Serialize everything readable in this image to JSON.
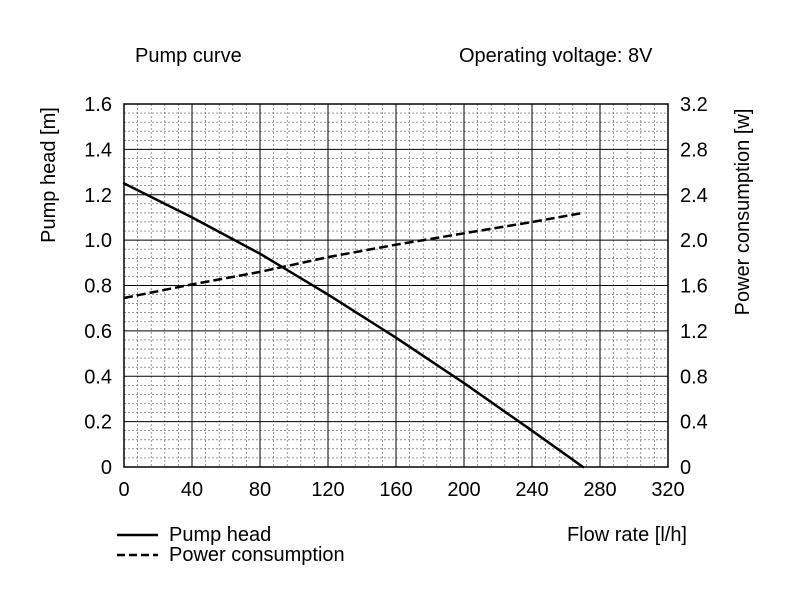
{
  "title": "Pump curve",
  "subtitle": "Operating voltage: 8V",
  "chart_data": {
    "type": "line",
    "xlabel": "Flow rate [l/h]",
    "ylabel": "Pump head [m]",
    "y2label": "Power consumption [w]",
    "xlim": [
      0,
      320
    ],
    "ylim": [
      0,
      1.6
    ],
    "y2lim": [
      0,
      3.2
    ],
    "x_ticks": [
      "0",
      "40",
      "80",
      "120",
      "160",
      "200",
      "240",
      "280",
      "320"
    ],
    "y_ticks": [
      "0",
      "0.2",
      "0.4",
      "0.6",
      "0.8",
      "1.0",
      "1.2",
      "1.4",
      "1.6"
    ],
    "y2_ticks": [
      "0",
      "0.4",
      "0.8",
      "1.2",
      "1.6",
      "2.0",
      "2.4",
      "2.8",
      "3.2"
    ],
    "grid": true,
    "legend_position": "bottom-left",
    "series": [
      {
        "name": "Pump head",
        "axis": "left",
        "style": "solid",
        "x": [
          0,
          40,
          80,
          120,
          160,
          200,
          240,
          270
        ],
        "y": [
          1.25,
          1.1,
          0.94,
          0.76,
          0.57,
          0.37,
          0.16,
          0.0
        ]
      },
      {
        "name": "Power consumption",
        "axis": "right",
        "style": "dashed",
        "x": [
          0,
          40,
          80,
          120,
          160,
          200,
          240,
          270
        ],
        "y": [
          1.49,
          1.61,
          1.72,
          1.85,
          1.96,
          2.06,
          2.16,
          2.24
        ]
      }
    ]
  }
}
